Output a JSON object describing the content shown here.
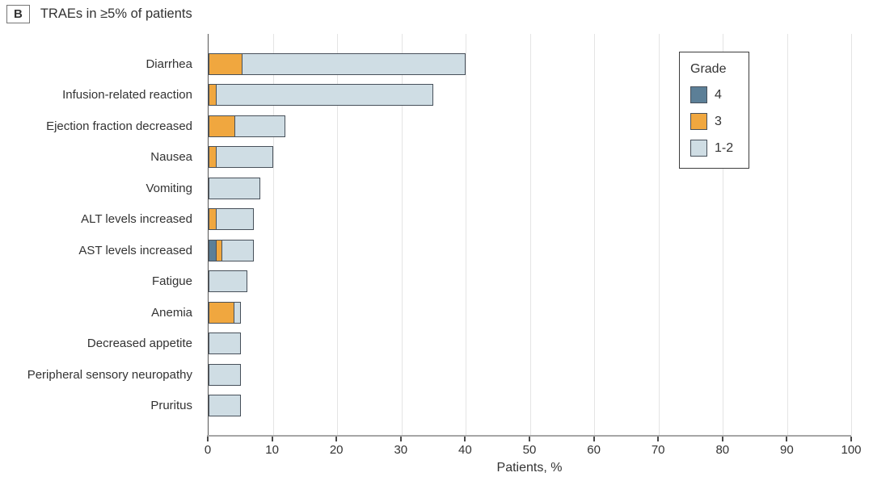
{
  "header": {
    "panel_label": "B",
    "title": "TRAEs in ≥5% of patients"
  },
  "colors": {
    "grade_4": "#5c7f97",
    "grade_3": "#f0a73f",
    "grade_1_2": "#cfdde4",
    "bar_border": "#47505a",
    "gridline": "#e4e4e4",
    "axis_line": "#a6a6a6",
    "text": "#333333"
  },
  "chart_data": {
    "type": "bar",
    "orientation": "horizontal",
    "stacked": true,
    "title": "TRAEs in ≥5% of patients",
    "panel_label": "B",
    "categories": [
      "Diarrhea",
      "Infusion-related reaction",
      "Ejection fraction decreased",
      "Nausea",
      "Vomiting",
      "ALT levels increased",
      "AST levels increased",
      "Fatigue",
      "Anemia",
      "Decreased appetite",
      "Peripheral sensory neuropathy",
      "Pruritus"
    ],
    "series": [
      {
        "name": "4",
        "color": "#5c7f97",
        "values": [
          0,
          0,
          0,
          0,
          0,
          0,
          1,
          0,
          0,
          0,
          0,
          0
        ]
      },
      {
        "name": "3",
        "color": "#f0a73f",
        "values": [
          5,
          1,
          4,
          1,
          0,
          1,
          1,
          0,
          4,
          0,
          0,
          0
        ]
      },
      {
        "name": "1-2",
        "color": "#cfdde4",
        "values": [
          35,
          34,
          8,
          9,
          8,
          6,
          5,
          6,
          1,
          5,
          5,
          5
        ]
      }
    ],
    "totals": [
      40,
      35,
      12,
      10,
      8,
      7,
      7,
      6,
      5,
      5,
      5,
      5
    ],
    "xlabel": "Patients, %",
    "xlim": [
      0,
      100
    ],
    "xticks": [
      0,
      10,
      20,
      30,
      40,
      50,
      60,
      70,
      80,
      90,
      100
    ],
    "legend": {
      "title": "Grade",
      "entries": [
        "4",
        "3",
        "1-2"
      ],
      "position": "top-right"
    },
    "grid": "vertical"
  }
}
